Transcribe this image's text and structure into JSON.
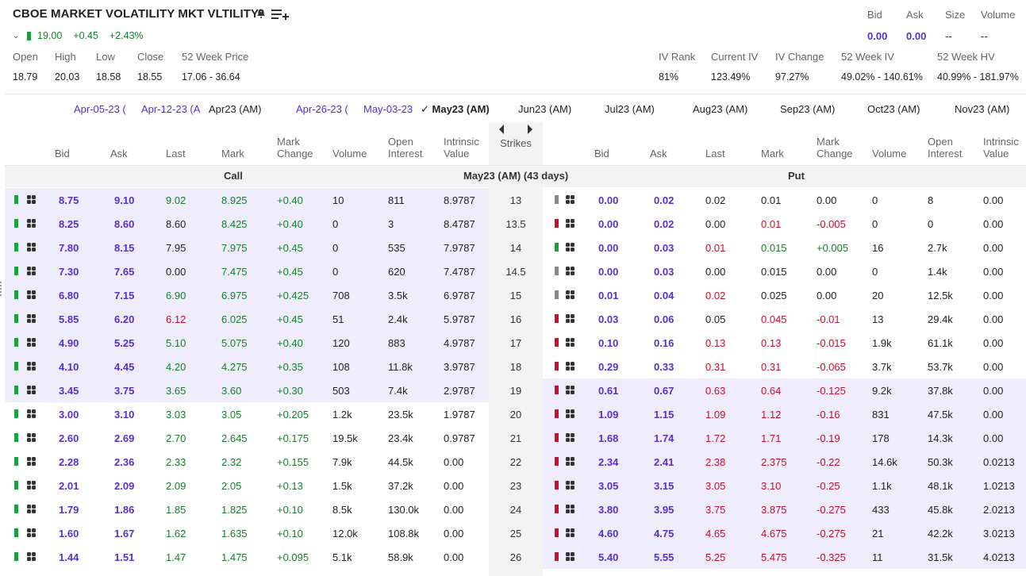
{
  "header": {
    "title": "CBOE MARKET VOLATILITY MKT VLTILITY",
    "price": "19.00",
    "change": "+0.45",
    "change_pct": "+2.43%",
    "quote_labels": [
      "Bid",
      "Ask",
      "Size",
      "Volume"
    ],
    "quote_values": [
      "0.00",
      "0.00",
      "--",
      "--"
    ],
    "stats_left": [
      {
        "label": "Open",
        "value": "18.79"
      },
      {
        "label": "High",
        "value": "20.03"
      },
      {
        "label": "Low",
        "value": "18.58"
      },
      {
        "label": "Close",
        "value": "18.55"
      },
      {
        "label": "52 Week Price",
        "value": "17.06 - 36.64"
      }
    ],
    "stats_right": [
      {
        "label": "IV Rank",
        "value": "81%"
      },
      {
        "label": "Current IV",
        "value": "123.49%"
      },
      {
        "label": "IV Change",
        "value": "97.27%"
      },
      {
        "label": "52 Week IV",
        "value": "49.02% - 140.61%"
      },
      {
        "label": "52 Week HV",
        "value": "40.99% - 181.97%"
      }
    ]
  },
  "expiries": [
    "Apr-05-23 (",
    "Apr-12-23 (A",
    "Apr23 (AM)",
    "Apr-26-23 (",
    "May-03-23",
    "May23 (AM)",
    "Jun23 (AM)",
    "Jul23 (AM)",
    "Aug23 (AM)",
    "Sep23 (AM)",
    "Oct23 (AM)",
    "Nov23 (AM)"
  ],
  "columns": {
    "bid": "Bid",
    "ask": "Ask",
    "last": "Last",
    "mark": "Mark",
    "mark_change_1": "Mark",
    "mark_change_2": "Change",
    "volume": "Volume",
    "oi_1": "Open",
    "oi_2": "Interest",
    "iv_1": "Intrinsic",
    "iv_2": "Value",
    "strikes": "Strikes"
  },
  "sections": {
    "call": "Call",
    "expiry_label": "May23 (AM) (43 days)",
    "put": "Put"
  },
  "rows": [
    {
      "strike": "13",
      "call": {
        "bid": "8.75",
        "ask": "9.10",
        "last": "9.02",
        "mark": "8.925",
        "chg": "+0.40",
        "vol": "10",
        "oi": "811",
        "intr": "8.9787",
        "itm": true,
        "ind": "g",
        "lastc": "g"
      },
      "put": {
        "bid": "0.00",
        "ask": "0.02",
        "last": "0.02",
        "mark": "0.01",
        "chg": "0.00",
        "vol": "0",
        "oi": "8",
        "intr": "0.00",
        "itm": false,
        "ind": "n",
        "lastc": "n",
        "markc": "n",
        "chgc": "n"
      }
    },
    {
      "strike": "13.5",
      "call": {
        "bid": "8.25",
        "ask": "8.60",
        "last": "8.60",
        "mark": "8.425",
        "chg": "+0.40",
        "vol": "0",
        "oi": "3",
        "intr": "8.4787",
        "itm": true,
        "ind": "g",
        "lastc": "n"
      },
      "put": {
        "bid": "0.00",
        "ask": "0.02",
        "last": "0.00",
        "mark": "0.01",
        "chg": "-0.005",
        "vol": "0",
        "oi": "0",
        "intr": "0.00",
        "itm": false,
        "ind": "r",
        "lastc": "n",
        "markc": "r",
        "chgc": "r"
      }
    },
    {
      "strike": "14",
      "call": {
        "bid": "7.80",
        "ask": "8.15",
        "last": "7.95",
        "mark": "7.975",
        "chg": "+0.45",
        "vol": "0",
        "oi": "535",
        "intr": "7.9787",
        "itm": true,
        "ind": "g",
        "lastc": "n"
      },
      "put": {
        "bid": "0.00",
        "ask": "0.03",
        "last": "0.01",
        "mark": "0.015",
        "chg": "+0.005",
        "vol": "16",
        "oi": "2.7k",
        "intr": "0.00",
        "itm": false,
        "ind": "g",
        "lastc": "r",
        "markc": "g",
        "chgc": "g"
      }
    },
    {
      "strike": "14.5",
      "call": {
        "bid": "7.30",
        "ask": "7.65",
        "last": "0.00",
        "mark": "7.475",
        "chg": "+0.45",
        "vol": "0",
        "oi": "620",
        "intr": "7.4787",
        "itm": true,
        "ind": "g",
        "lastc": "n"
      },
      "put": {
        "bid": "0.00",
        "ask": "0.03",
        "last": "0.00",
        "mark": "0.015",
        "chg": "0.00",
        "vol": "0",
        "oi": "1.4k",
        "intr": "0.00",
        "itm": false,
        "ind": "n",
        "lastc": "n",
        "markc": "n",
        "chgc": "n"
      }
    },
    {
      "strike": "15",
      "call": {
        "bid": "6.80",
        "ask": "7.15",
        "last": "6.90",
        "mark": "6.975",
        "chg": "+0.425",
        "vol": "708",
        "oi": "3.5k",
        "intr": "6.9787",
        "itm": true,
        "ind": "g",
        "lastc": "g"
      },
      "put": {
        "bid": "0.01",
        "ask": "0.04",
        "last": "0.02",
        "mark": "0.025",
        "chg": "0.00",
        "vol": "20",
        "oi": "12.5k",
        "intr": "0.00",
        "itm": false,
        "ind": "n",
        "lastc": "r",
        "markc": "n",
        "chgc": "n"
      }
    },
    {
      "strike": "16",
      "call": {
        "bid": "5.85",
        "ask": "6.20",
        "last": "6.12",
        "mark": "6.025",
        "chg": "+0.45",
        "vol": "51",
        "oi": "2.4k",
        "intr": "5.9787",
        "itm": true,
        "ind": "g",
        "lastc": "r"
      },
      "put": {
        "bid": "0.03",
        "ask": "0.06",
        "last": "0.05",
        "mark": "0.045",
        "chg": "-0.01",
        "vol": "13",
        "oi": "29.4k",
        "intr": "0.00",
        "itm": false,
        "ind": "r",
        "lastc": "n",
        "markc": "r",
        "chgc": "r"
      }
    },
    {
      "strike": "17",
      "call": {
        "bid": "4.90",
        "ask": "5.25",
        "last": "5.10",
        "mark": "5.075",
        "chg": "+0.40",
        "vol": "120",
        "oi": "883",
        "intr": "4.9787",
        "itm": true,
        "ind": "g",
        "lastc": "g"
      },
      "put": {
        "bid": "0.10",
        "ask": "0.16",
        "last": "0.13",
        "mark": "0.13",
        "chg": "-0.015",
        "vol": "1.9k",
        "oi": "61.1k",
        "intr": "0.00",
        "itm": false,
        "ind": "r",
        "lastc": "r",
        "markc": "r",
        "chgc": "r"
      }
    },
    {
      "strike": "18",
      "call": {
        "bid": "4.10",
        "ask": "4.45",
        "last": "4.20",
        "mark": "4.275",
        "chg": "+0.35",
        "vol": "108",
        "oi": "11.8k",
        "intr": "3.9787",
        "itm": true,
        "ind": "g",
        "lastc": "g"
      },
      "put": {
        "bid": "0.29",
        "ask": "0.33",
        "last": "0.31",
        "mark": "0.31",
        "chg": "-0.065",
        "vol": "3.7k",
        "oi": "53.7k",
        "intr": "0.00",
        "itm": false,
        "ind": "r",
        "lastc": "r",
        "markc": "r",
        "chgc": "r"
      }
    },
    {
      "strike": "19",
      "call": {
        "bid": "3.45",
        "ask": "3.75",
        "last": "3.65",
        "mark": "3.60",
        "chg": "+0.30",
        "vol": "503",
        "oi": "7.4k",
        "intr": "2.9787",
        "itm": true,
        "ind": "g",
        "lastc": "g"
      },
      "put": {
        "bid": "0.61",
        "ask": "0.67",
        "last": "0.63",
        "mark": "0.64",
        "chg": "-0.125",
        "vol": "9.2k",
        "oi": "37.8k",
        "intr": "0.00",
        "itm": true,
        "ind": "r",
        "lastc": "r",
        "markc": "r",
        "chgc": "r"
      }
    },
    {
      "strike": "20",
      "call": {
        "bid": "3.00",
        "ask": "3.10",
        "last": "3.03",
        "mark": "3.05",
        "chg": "+0.205",
        "vol": "1.2k",
        "oi": "23.5k",
        "intr": "1.9787",
        "itm": false,
        "ind": "g",
        "lastc": "g"
      },
      "put": {
        "bid": "1.09",
        "ask": "1.15",
        "last": "1.09",
        "mark": "1.12",
        "chg": "-0.16",
        "vol": "831",
        "oi": "47.5k",
        "intr": "0.00",
        "itm": true,
        "ind": "r",
        "lastc": "r",
        "markc": "r",
        "chgc": "r"
      }
    },
    {
      "strike": "21",
      "call": {
        "bid": "2.60",
        "ask": "2.69",
        "last": "2.70",
        "mark": "2.645",
        "chg": "+0.175",
        "vol": "19.5k",
        "oi": "23.4k",
        "intr": "0.9787",
        "itm": false,
        "ind": "g",
        "lastc": "g"
      },
      "put": {
        "bid": "1.68",
        "ask": "1.74",
        "last": "1.72",
        "mark": "1.71",
        "chg": "-0.19",
        "vol": "178",
        "oi": "14.3k",
        "intr": "0.00",
        "itm": true,
        "ind": "r",
        "lastc": "r",
        "markc": "r",
        "chgc": "r"
      }
    },
    {
      "strike": "22",
      "call": {
        "bid": "2.28",
        "ask": "2.36",
        "last": "2.33",
        "mark": "2.32",
        "chg": "+0.155",
        "vol": "7.9k",
        "oi": "44.5k",
        "intr": "0.00",
        "itm": false,
        "ind": "g",
        "lastc": "g"
      },
      "put": {
        "bid": "2.34",
        "ask": "2.41",
        "last": "2.38",
        "mark": "2.375",
        "chg": "-0.22",
        "vol": "14.6k",
        "oi": "50.3k",
        "intr": "0.0213",
        "itm": true,
        "ind": "r",
        "lastc": "r",
        "markc": "r",
        "chgc": "r"
      }
    },
    {
      "strike": "23",
      "call": {
        "bid": "2.01",
        "ask": "2.09",
        "last": "2.09",
        "mark": "2.05",
        "chg": "+0.13",
        "vol": "1.5k",
        "oi": "37.2k",
        "intr": "0.00",
        "itm": false,
        "ind": "g",
        "lastc": "g"
      },
      "put": {
        "bid": "3.05",
        "ask": "3.15",
        "last": "3.05",
        "mark": "3.10",
        "chg": "-0.25",
        "vol": "1.1k",
        "oi": "48.1k",
        "intr": "1.0213",
        "itm": true,
        "ind": "r",
        "lastc": "r",
        "markc": "r",
        "chgc": "r"
      }
    },
    {
      "strike": "24",
      "call": {
        "bid": "1.79",
        "ask": "1.86",
        "last": "1.85",
        "mark": "1.825",
        "chg": "+0.10",
        "vol": "8.5k",
        "oi": "130.0k",
        "intr": "0.00",
        "itm": false,
        "ind": "g",
        "lastc": "g"
      },
      "put": {
        "bid": "3.80",
        "ask": "3.95",
        "last": "3.75",
        "mark": "3.875",
        "chg": "-0.275",
        "vol": "433",
        "oi": "45.8k",
        "intr": "2.0213",
        "itm": true,
        "ind": "r",
        "lastc": "r",
        "markc": "r",
        "chgc": "r"
      }
    },
    {
      "strike": "25",
      "call": {
        "bid": "1.60",
        "ask": "1.67",
        "last": "1.62",
        "mark": "1.635",
        "chg": "+0.10",
        "vol": "12.0k",
        "oi": "108.8k",
        "intr": "0.00",
        "itm": false,
        "ind": "g",
        "lastc": "g"
      },
      "put": {
        "bid": "4.60",
        "ask": "4.75",
        "last": "4.65",
        "mark": "4.675",
        "chg": "-0.275",
        "vol": "21",
        "oi": "42.2k",
        "intr": "3.0213",
        "itm": true,
        "ind": "r",
        "lastc": "r",
        "markc": "r",
        "chgc": "r"
      }
    },
    {
      "strike": "26",
      "call": {
        "bid": "1.44",
        "ask": "1.51",
        "last": "1.47",
        "mark": "1.475",
        "chg": "+0.095",
        "vol": "5.1k",
        "oi": "58.9k",
        "intr": "0.00",
        "itm": false,
        "ind": "g",
        "lastc": "g"
      },
      "put": {
        "bid": "5.40",
        "ask": "5.55",
        "last": "5.25",
        "mark": "5.475",
        "chg": "-0.325",
        "vol": "11",
        "oi": "31.5k",
        "intr": "4.0213",
        "itm": true,
        "ind": "r",
        "lastc": "r",
        "markc": "r",
        "chgc": "r"
      }
    }
  ],
  "colors": {
    "itm_bg": "#efecfc",
    "purple": "#5a2dcf",
    "green": "#1a7f2d",
    "red": "#c8102e",
    "neutral_ind": "#888888"
  }
}
